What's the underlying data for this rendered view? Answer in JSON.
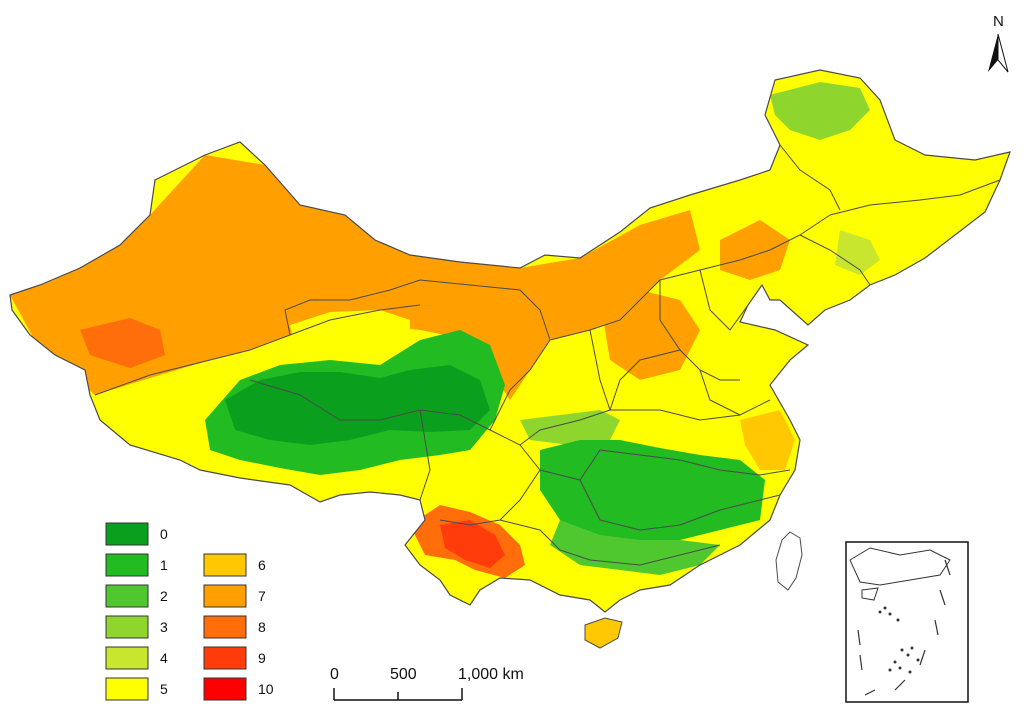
{
  "map": {
    "north_label": "N",
    "legend": [
      {
        "label": "0",
        "color": "#0aa01e"
      },
      {
        "label": "1",
        "color": "#22bb22"
      },
      {
        "label": "2",
        "color": "#4fc830"
      },
      {
        "label": "3",
        "color": "#8ed62e"
      },
      {
        "label": "4",
        "color": "#c8e62d"
      },
      {
        "label": "5",
        "color": "#ffff00"
      },
      {
        "label": "6",
        "color": "#ffc800"
      },
      {
        "label": "7",
        "color": "#ff9f00"
      },
      {
        "label": "8",
        "color": "#ff6e0a"
      },
      {
        "label": "9",
        "color": "#ff3c0a"
      },
      {
        "label": "10",
        "color": "#ff0000"
      }
    ],
    "scale_bar": {
      "ticks": [
        "0",
        "500",
        "1,000 km"
      ]
    }
  }
}
